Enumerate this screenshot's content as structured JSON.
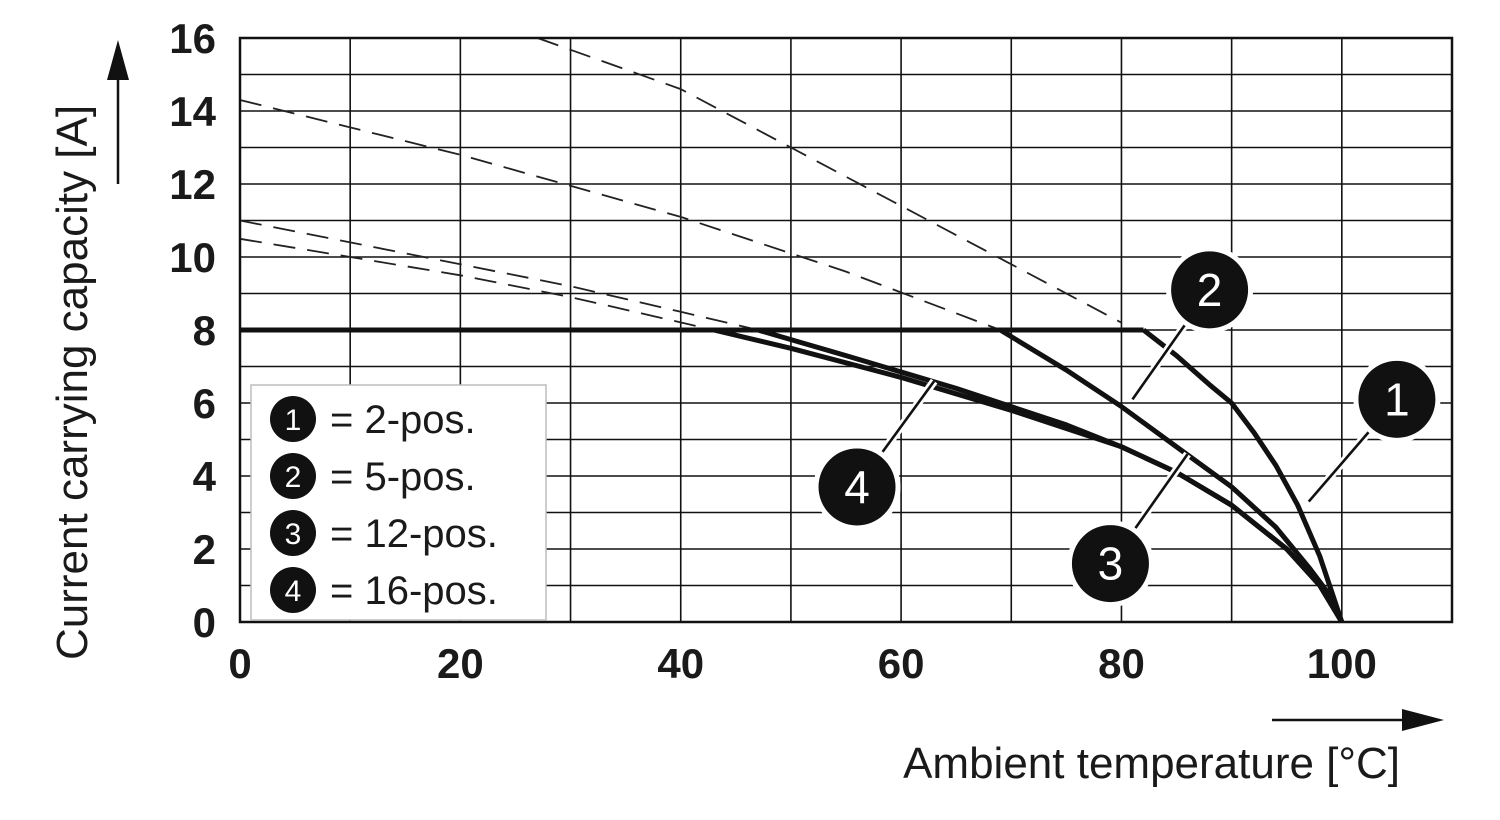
{
  "chart_data": {
    "type": "line",
    "title": "",
    "xlabel": "Ambient temperature [°C]",
    "ylabel": "Current carrying capacity [A]",
    "xlim": [
      0,
      110
    ],
    "ylim": [
      0,
      16
    ],
    "x_ticks": [
      "0",
      "20",
      "40",
      "60",
      "80",
      "100"
    ],
    "y_ticks": [
      "0",
      "2",
      "4",
      "6",
      "8",
      "10",
      "12",
      "14",
      "16"
    ],
    "grid": true,
    "current_limit": 8,
    "legend": {
      "position": "bottom-left",
      "entries": [
        {
          "marker": "1",
          "text": "= 2-pos."
        },
        {
          "marker": "2",
          "text": "= 5-pos."
        },
        {
          "marker": "3",
          "text": "= 12-pos."
        },
        {
          "marker": "4",
          "text": "= 16-pos."
        }
      ]
    },
    "series": [
      {
        "marker": "1",
        "line_style": "solid",
        "points": [
          [
            82,
            8
          ],
          [
            85,
            7.3
          ],
          [
            88,
            6.5
          ],
          [
            90,
            6
          ],
          [
            92,
            5.2
          ],
          [
            94,
            4.3
          ],
          [
            96,
            3.2
          ],
          [
            98,
            1.8
          ],
          [
            99,
            0.9
          ],
          [
            100,
            0
          ]
        ],
        "extrapolated": [
          [
            27,
            16
          ],
          [
            40,
            14.6
          ],
          [
            50,
            13
          ],
          [
            60,
            11.4
          ],
          [
            70,
            9.8
          ],
          [
            80,
            8.2
          ]
        ]
      },
      {
        "marker": "2",
        "line_style": "solid",
        "points": [
          [
            69,
            8
          ],
          [
            75,
            6.9
          ],
          [
            80,
            5.9
          ],
          [
            85,
            4.8
          ],
          [
            90,
            3.7
          ],
          [
            94,
            2.6
          ],
          [
            97,
            1.5
          ],
          [
            99,
            0.7
          ],
          [
            100,
            0
          ]
        ],
        "extrapolated": [
          [
            0,
            14.3
          ],
          [
            20,
            12.8
          ],
          [
            40,
            11.1
          ],
          [
            55,
            9.6
          ],
          [
            69,
            8
          ]
        ]
      },
      {
        "marker": "3",
        "line_style": "solid",
        "points": [
          [
            47,
            8
          ],
          [
            55,
            7.3
          ],
          [
            65,
            6.4
          ],
          [
            75,
            5.4
          ],
          [
            80,
            4.8
          ],
          [
            85,
            4.1
          ],
          [
            90,
            3.2
          ],
          [
            95,
            2.0
          ],
          [
            98,
            1.0
          ],
          [
            100,
            0
          ]
        ],
        "extrapolated": [
          [
            0,
            11
          ],
          [
            10,
            10.4
          ],
          [
            20,
            9.8
          ],
          [
            30,
            9.2
          ],
          [
            40,
            8.5
          ],
          [
            47,
            8
          ]
        ]
      },
      {
        "marker": "4",
        "line_style": "solid",
        "points": [
          [
            43,
            8
          ],
          [
            50,
            7.5
          ],
          [
            60,
            6.7
          ],
          [
            70,
            5.8
          ],
          [
            80,
            4.8
          ],
          [
            85,
            4.1
          ],
          [
            90,
            3.2
          ],
          [
            95,
            2.0
          ],
          [
            98,
            1.0
          ],
          [
            100,
            0
          ]
        ],
        "extrapolated": [
          [
            0,
            10.5
          ],
          [
            10,
            10.0
          ],
          [
            20,
            9.5
          ],
          [
            30,
            8.9
          ],
          [
            43,
            8
          ]
        ]
      }
    ],
    "callouts": [
      {
        "marker": "1",
        "badge_x": 105,
        "badge_y": 6.1,
        "leader_to": [
          97,
          3.3
        ]
      },
      {
        "marker": "2",
        "badge_x": 88,
        "badge_y": 9.1,
        "leader_to": [
          81,
          6.1
        ]
      },
      {
        "marker": "3",
        "badge_x": 79,
        "badge_y": 1.6,
        "leader_to": [
          86,
          4.6
        ]
      },
      {
        "marker": "4",
        "badge_x": 56,
        "badge_y": 3.7,
        "leader_to": [
          63,
          6.6
        ]
      }
    ]
  }
}
